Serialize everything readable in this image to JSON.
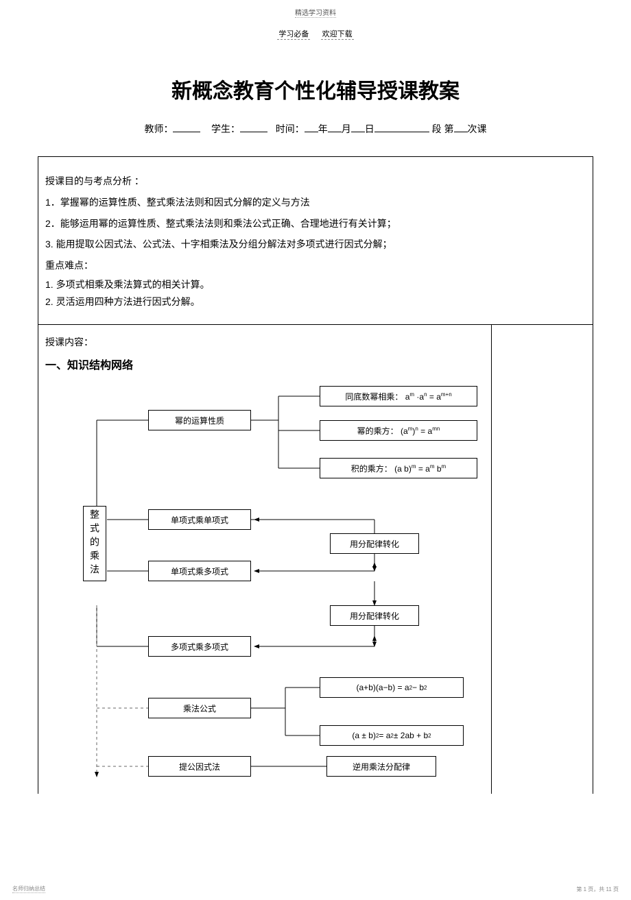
{
  "header": {
    "note": "精选学习资料",
    "sub_left": "学习必备",
    "sub_right": "欢迎下载"
  },
  "title": "新概念教育个性化辅导授课教案",
  "info": {
    "teacher_label": "教师：",
    "student_label": "学生：",
    "time_label": "时间：",
    "year": "年",
    "month": "月",
    "day": "日",
    "segment_label": "段 第",
    "lesson_suffix": "次课"
  },
  "section1": {
    "title": "授课目的与考点分析 ：",
    "p1": "1．掌握幂的运算性质、整式乘法法则和因式分解的定义与方法",
    "p2": "2．能够运用幂的运算性质、整式乘法法则和乘法公式正确、合理地进行有关计算；",
    "p3": "3. 能用提取公因式法、公式法、十字相乘法及分组分解法对多项式进行因式分解；",
    "d_title": "重点难点：",
    "d1": "1. 多项式相乘及乘法算式的相关计算。",
    "d2": "2. 灵活运用四种方法进行因式分解。"
  },
  "section2": {
    "title": "授课内容：",
    "heading": "一、知识结构网络"
  },
  "chart": {
    "vlabel": "整式的乘法",
    "n_power": "幂的运算性质",
    "n_mono_mono": "单项式乘单项式",
    "n_mono_poly": "单项式乘多项式",
    "n_poly_poly": "多项式乘多项式",
    "n_formula": "乘法公式",
    "n_extract": "提公因式法",
    "n_same_base_prefix": "同底数幂相乘：",
    "n_power_pow_prefix": "幂的乘方：",
    "n_prod_pow_prefix": "积的乘方：",
    "n_dist1": "用分配律转化",
    "n_dist2": "用分配律转化",
    "n_inverse": "逆用乘法分配律",
    "formula1_html": "a<span class=\"sup\">m</span> ·a<span class=\"sup\">n</span> = a<span class=\"sup\">m+n</span>",
    "formula2_html": "(a<span class=\"sup\">m</span>)<span class=\"sup\">n</span> = a<span class=\"sup\">mn</span>",
    "formula3_html": "(a b)<span class=\"sup\">m</span> = a<span class=\"sup\">m</span> b<span class=\"sup\">m</span>",
    "formula4_html": "(a+b)(a−b) = a<span class=\"sup\">2</span> − b<span class=\"sup\">2</span>",
    "formula5_html": "(a ± b)<span class=\"sup\">2</span> = a<span class=\"sup\">2</span> ± 2ab + b<span class=\"sup\">2</span>",
    "colors": {
      "line": "#000000",
      "dash": "#666666"
    }
  },
  "footer": {
    "left": "名师归纳总结",
    "right": "第 1 页，共 11 页"
  }
}
